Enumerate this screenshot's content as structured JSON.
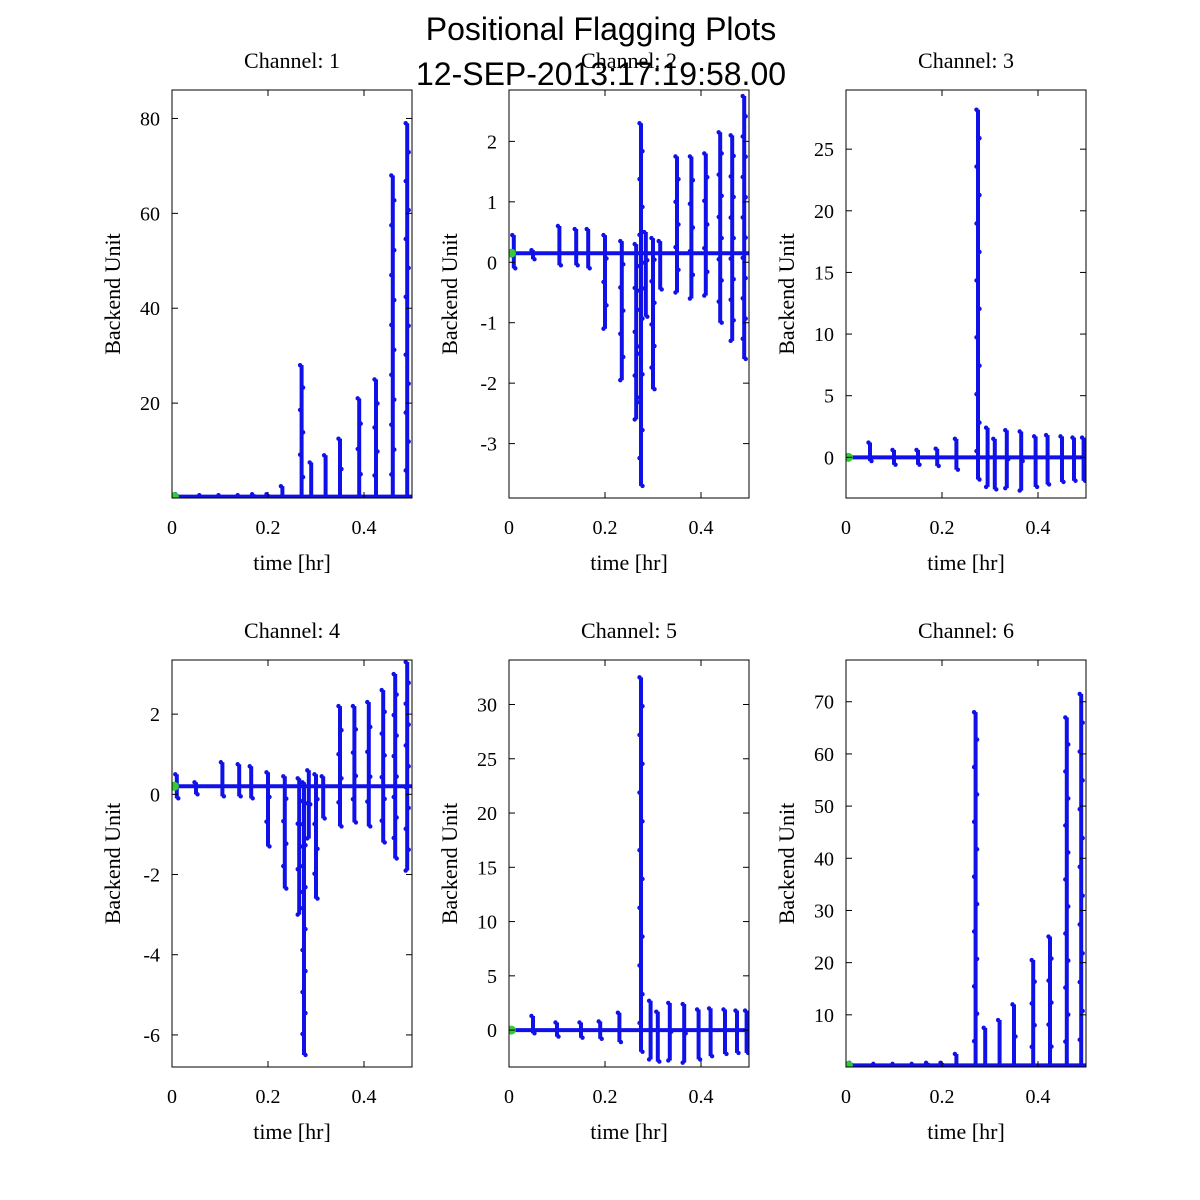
{
  "figure": {
    "title_line1": "Positional Flagging Plots",
    "title_line2": "12-SEP-2013:17:19:58.00"
  },
  "colors": {
    "data": "#1010e8",
    "start_marker": "#33cc33",
    "axes": "#000000"
  },
  "chart_data": [
    {
      "type": "scatter",
      "title": "Channel: 1",
      "xlabel": "time [hr]",
      "ylabel": "Backend Unit",
      "xlim": [
        0,
        0.5
      ],
      "ylim": [
        0,
        86
      ],
      "xticks": [
        0,
        0.2,
        0.4
      ],
      "xtick_labels": [
        "0",
        "0.2",
        "0.4"
      ],
      "yticks": [
        20,
        40,
        60,
        80
      ],
      "ytick_labels": [
        "20",
        "40",
        "60",
        "80"
      ],
      "baseline": 0.3,
      "start_point": [
        0.005,
        0.3
      ],
      "spikes": [
        [
          0.01,
          0.8,
          -0.3
        ],
        [
          0.06,
          0.6,
          -0.3
        ],
        [
          0.1,
          0.6,
          -0.3
        ],
        [
          0.14,
          0.6,
          -0.3
        ],
        [
          0.17,
          0.8,
          -0.3
        ],
        [
          0.2,
          0.8,
          -0.3
        ],
        [
          0.23,
          2.5,
          -0.3
        ],
        [
          0.27,
          28,
          -0.3
        ],
        [
          0.29,
          7.5,
          -0.3
        ],
        [
          0.32,
          9,
          -0.3
        ],
        [
          0.35,
          12.5,
          -0.3
        ],
        [
          0.39,
          21,
          -0.3
        ],
        [
          0.425,
          25,
          -0.3
        ],
        [
          0.46,
          68,
          -0.3
        ],
        [
          0.49,
          79,
          -0.3
        ]
      ]
    },
    {
      "type": "scatter",
      "title": "Channel: 2",
      "xlabel": "time [hr]",
      "ylabel": "Backend Unit",
      "xlim": [
        0,
        0.5
      ],
      "ylim": [
        -3.9,
        2.85
      ],
      "xticks": [
        0,
        0.2,
        0.4
      ],
      "xtick_labels": [
        "0",
        "0.2",
        "0.4"
      ],
      "yticks": [
        -3,
        -2,
        -1,
        0,
        1,
        2
      ],
      "ytick_labels": [
        "-3",
        "-2",
        "-1",
        "0",
        "1",
        "2"
      ],
      "baseline": 0.15,
      "start_point": [
        0.005,
        0.15
      ],
      "spikes": [
        [
          0.01,
          0.45,
          -0.1
        ],
        [
          0.05,
          0.2,
          0.05
        ],
        [
          0.105,
          0.6,
          -0.05
        ],
        [
          0.14,
          0.55,
          -0.05
        ],
        [
          0.165,
          0.55,
          -0.1
        ],
        [
          0.2,
          0.45,
          -1.1
        ],
        [
          0.235,
          0.35,
          -1.95
        ],
        [
          0.265,
          0.3,
          -2.6
        ],
        [
          0.275,
          2.3,
          -3.7
        ],
        [
          0.285,
          0.5,
          -0.9
        ],
        [
          0.3,
          0.4,
          -2.1
        ],
        [
          0.315,
          0.35,
          -0.45
        ],
        [
          0.35,
          1.75,
          -0.5
        ],
        [
          0.38,
          1.75,
          -0.6
        ],
        [
          0.41,
          1.8,
          -0.55
        ],
        [
          0.44,
          2.15,
          -1.0
        ],
        [
          0.465,
          2.1,
          -1.3
        ],
        [
          0.49,
          2.75,
          -1.6
        ]
      ]
    },
    {
      "type": "scatter",
      "title": "Channel: 3",
      "xlabel": "time [hr]",
      "ylabel": "Backend Unit",
      "xlim": [
        0,
        0.5
      ],
      "ylim": [
        -3.3,
        29.8
      ],
      "xticks": [
        0,
        0.2,
        0.4
      ],
      "xtick_labels": [
        "0",
        "0.2",
        "0.4"
      ],
      "yticks": [
        0,
        5,
        10,
        15,
        20,
        25
      ],
      "ytick_labels": [
        "0",
        "5",
        "10",
        "15",
        "20",
        "25"
      ],
      "baseline": 0,
      "start_point": [
        0.005,
        0
      ],
      "spikes": [
        [
          0.05,
          1.2,
          -0.3
        ],
        [
          0.1,
          0.6,
          -0.6
        ],
        [
          0.15,
          0.6,
          -0.6
        ],
        [
          0.19,
          0.7,
          -0.7
        ],
        [
          0.23,
          1.5,
          -1.0
        ],
        [
          0.275,
          28.2,
          -1.8
        ],
        [
          0.295,
          2.4,
          -2.4
        ],
        [
          0.31,
          1.5,
          -2.6
        ],
        [
          0.335,
          2.2,
          -2.5
        ],
        [
          0.365,
          2.1,
          -2.7
        ],
        [
          0.395,
          1.7,
          -2.4
        ],
        [
          0.42,
          1.8,
          -2.2
        ],
        [
          0.45,
          1.7,
          -2.0
        ],
        [
          0.475,
          1.6,
          -1.9
        ],
        [
          0.495,
          1.6,
          -1.9
        ]
      ]
    },
    {
      "type": "scatter",
      "title": "Channel: 4",
      "xlabel": "time [hr]",
      "ylabel": "Backend Unit",
      "xlim": [
        0,
        0.5
      ],
      "ylim": [
        -6.8,
        3.35
      ],
      "xticks": [
        0,
        0.2,
        0.4
      ],
      "xtick_labels": [
        "0",
        "0.2",
        "0.4"
      ],
      "yticks": [
        -6,
        -4,
        -2,
        0,
        2
      ],
      "ytick_labels": [
        "-6",
        "-4",
        "-2",
        "0",
        "2"
      ],
      "baseline": 0.2,
      "start_point": [
        0.005,
        0.2
      ],
      "spikes": [
        [
          0.01,
          0.5,
          -0.1
        ],
        [
          0.05,
          0.3,
          0.0
        ],
        [
          0.105,
          0.8,
          -0.05
        ],
        [
          0.14,
          0.75,
          -0.05
        ],
        [
          0.165,
          0.7,
          -0.1
        ],
        [
          0.2,
          0.55,
          -1.3
        ],
        [
          0.235,
          0.45,
          -2.35
        ],
        [
          0.265,
          0.4,
          -3.0
        ],
        [
          0.275,
          0.3,
          -6.5
        ],
        [
          0.285,
          0.6,
          -1.1
        ],
        [
          0.3,
          0.5,
          -2.6
        ],
        [
          0.315,
          0.45,
          -0.6
        ],
        [
          0.35,
          2.2,
          -0.8
        ],
        [
          0.38,
          2.2,
          -0.7
        ],
        [
          0.41,
          2.3,
          -0.8
        ],
        [
          0.44,
          2.6,
          -1.2
        ],
        [
          0.465,
          3.0,
          -1.6
        ],
        [
          0.49,
          3.3,
          -1.9
        ]
      ]
    },
    {
      "type": "scatter",
      "title": "Channel: 5",
      "xlabel": "time [hr]",
      "ylabel": "Backend Unit",
      "xlim": [
        0,
        0.5
      ],
      "ylim": [
        -3.4,
        34.1
      ],
      "xticks": [
        0,
        0.2,
        0.4
      ],
      "xtick_labels": [
        "0",
        "0.2",
        "0.4"
      ],
      "yticks": [
        0,
        5,
        10,
        15,
        20,
        25,
        30
      ],
      "ytick_labels": [
        "0",
        "5",
        "10",
        "15",
        "20",
        "25",
        "30"
      ],
      "baseline": 0,
      "start_point": [
        0.005,
        0
      ],
      "spikes": [
        [
          0.05,
          1.3,
          -0.3
        ],
        [
          0.1,
          0.7,
          -0.6
        ],
        [
          0.15,
          0.7,
          -0.7
        ],
        [
          0.19,
          0.8,
          -0.8
        ],
        [
          0.23,
          1.6,
          -1.1
        ],
        [
          0.275,
          32.5,
          -2.0
        ],
        [
          0.295,
          2.7,
          -2.7
        ],
        [
          0.31,
          1.7,
          -2.9
        ],
        [
          0.335,
          2.5,
          -2.8
        ],
        [
          0.365,
          2.4,
          -3.0
        ],
        [
          0.395,
          1.9,
          -2.7
        ],
        [
          0.42,
          2.0,
          -2.4
        ],
        [
          0.45,
          1.9,
          -2.2
        ],
        [
          0.475,
          1.8,
          -2.1
        ],
        [
          0.495,
          1.8,
          -2.1
        ]
      ]
    },
    {
      "type": "scatter",
      "title": "Channel: 6",
      "xlabel": "time [hr]",
      "ylabel": "Backend Unit",
      "xlim": [
        0,
        0.5
      ],
      "ylim": [
        0,
        78
      ],
      "xticks": [
        0,
        0.2,
        0.4
      ],
      "xtick_labels": [
        "0",
        "0.2",
        "0.4"
      ],
      "yticks": [
        10,
        20,
        30,
        40,
        50,
        60,
        70
      ],
      "ytick_labels": [
        "10",
        "20",
        "30",
        "40",
        "50",
        "60",
        "70"
      ],
      "baseline": 0.3,
      "start_point": [
        0.005,
        0.3
      ],
      "spikes": [
        [
          0.01,
          0.8,
          -0.3
        ],
        [
          0.06,
          0.6,
          -0.3
        ],
        [
          0.1,
          0.6,
          -0.3
        ],
        [
          0.14,
          0.6,
          -0.3
        ],
        [
          0.17,
          0.8,
          -0.3
        ],
        [
          0.2,
          0.8,
          -0.3
        ],
        [
          0.23,
          2.5,
          -0.3
        ],
        [
          0.27,
          68,
          -0.3
        ],
        [
          0.29,
          7.5,
          -0.3
        ],
        [
          0.32,
          9,
          -0.3
        ],
        [
          0.35,
          12,
          -0.3
        ],
        [
          0.39,
          20.5,
          -0.3
        ],
        [
          0.425,
          25,
          -0.3
        ],
        [
          0.46,
          67,
          -0.3
        ],
        [
          0.49,
          71.5,
          -0.3
        ]
      ]
    }
  ]
}
